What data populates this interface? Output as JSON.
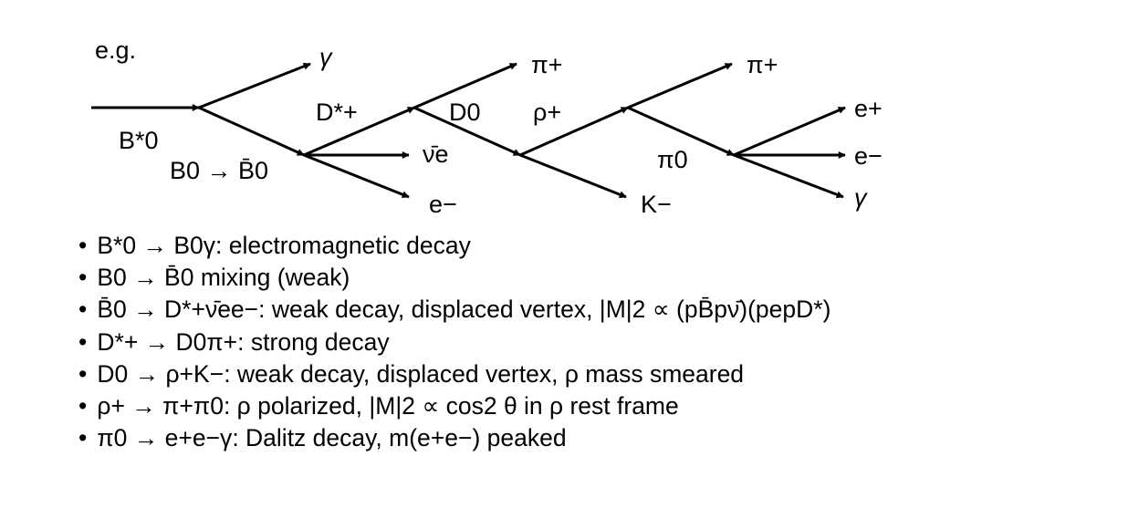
{
  "intro_label": "e.g.",
  "diagram": {
    "labels": {
      "gamma_top": "γ",
      "b_star0": "B*0",
      "b0_mixing": "B0 → B̄0",
      "d_star_plus": "D*+",
      "nu_bar_e": "ν̄e",
      "e_minus_1": "e−",
      "d0": "D0",
      "pi_plus_1": "π+",
      "rho_plus": "ρ+",
      "k_minus": "K−",
      "pi_plus_2": "π+",
      "pi0": "π0",
      "e_plus": "e+",
      "e_minus_2": "e−",
      "gamma_bottom": "γ"
    }
  },
  "bullets": [
    {
      "decay": "B*0 → B0γ",
      "note": "electromagnetic decay"
    },
    {
      "decay": "B0 → B̄0",
      "note": "mixing (weak)"
    },
    {
      "decay": "B̄0 → D*+ν̄ee−",
      "note": "weak decay, displaced vertex, |M|2 ∝ (pB̄pν̄)(pepD*)"
    },
    {
      "decay": "D*+ → D0π+",
      "note": "strong decay"
    },
    {
      "decay": "D0 → ρ+K−",
      "note": "weak decay, displaced vertex, ρ mass smeared"
    },
    {
      "decay": "ρ+ → π+π0",
      "note": "ρ polarized, |M|2 ∝ cos2 θ in ρ rest frame"
    },
    {
      "decay": "π0 → e+e−γ",
      "note": "Dalitz decay, m(e+e−) peaked"
    }
  ]
}
